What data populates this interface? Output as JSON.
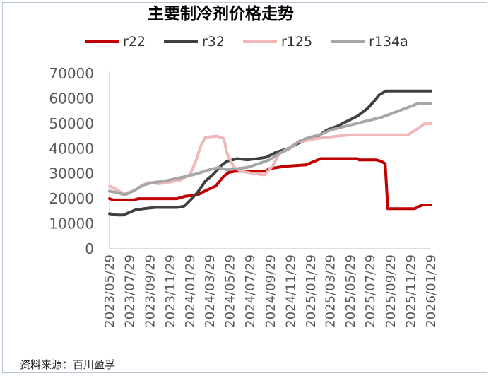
{
  "source_note": "资料来源：百川盈孚",
  "chart_data": {
    "type": "line",
    "title": "主要制冷剂价格走势",
    "xlabel": "",
    "ylabel": "",
    "ylim": [
      0,
      70000
    ],
    "yticks": [
      0,
      10000,
      20000,
      30000,
      40000,
      50000,
      60000,
      70000
    ],
    "xlim": [
      "2023-05-29",
      "2026-01-29"
    ],
    "xticks": [
      "2023/05/29",
      "2023/07/29",
      "2023/09/29",
      "2023/11/29",
      "2024/01/29",
      "2024/03/29",
      "2024/05/29",
      "2024/07/29",
      "2024/09/29",
      "2024/11/29",
      "2025/01/29",
      "2025/03/29",
      "2025/05/29",
      "2025/07/29",
      "2025/09/29",
      "2025/11/29",
      "2026/01/29"
    ],
    "grid": false,
    "legend_position": "top",
    "series": [
      {
        "name": "r22",
        "color": "#c00000",
        "points": [
          [
            "2023-05-29",
            20000
          ],
          [
            "2023-06-10",
            19500
          ],
          [
            "2023-08-10",
            19500
          ],
          [
            "2023-08-25",
            20000
          ],
          [
            "2023-12-20",
            20000
          ],
          [
            "2024-01-15",
            21000
          ],
          [
            "2024-02-20",
            21500
          ],
          [
            "2024-03-20",
            23500
          ],
          [
            "2024-04-15",
            25000
          ],
          [
            "2024-05-10",
            29000
          ],
          [
            "2024-05-25",
            30500
          ],
          [
            "2024-06-15",
            31000
          ],
          [
            "2024-09-15",
            31000
          ],
          [
            "2024-09-25",
            32000
          ],
          [
            "2024-11-15",
            33000
          ],
          [
            "2025-01-15",
            33500
          ],
          [
            "2025-02-01",
            34500
          ],
          [
            "2025-03-01",
            36000
          ],
          [
            "2025-06-20",
            36000
          ],
          [
            "2025-06-25",
            35500
          ],
          [
            "2025-08-15",
            35500
          ],
          [
            "2025-08-30",
            35000
          ],
          [
            "2025-09-12",
            34000
          ],
          [
            "2025-09-20",
            16000
          ],
          [
            "2025-12-10",
            16000
          ],
          [
            "2025-12-25",
            17000
          ],
          [
            "2026-01-05",
            17500
          ],
          [
            "2026-01-29",
            17500
          ]
        ]
      },
      {
        "name": "r32",
        "color": "#404040",
        "points": [
          [
            "2023-05-29",
            14000
          ],
          [
            "2023-06-20",
            13500
          ],
          [
            "2023-07-10",
            13500
          ],
          [
            "2023-08-15",
            15500
          ],
          [
            "2023-09-10",
            16000
          ],
          [
            "2023-10-15",
            16500
          ],
          [
            "2023-12-20",
            16500
          ],
          [
            "2024-01-10",
            17000
          ],
          [
            "2024-01-30",
            19500
          ],
          [
            "2024-02-20",
            22500
          ],
          [
            "2024-03-15",
            27000
          ],
          [
            "2024-04-10",
            30000
          ],
          [
            "2024-04-30",
            33000
          ],
          [
            "2024-05-20",
            35000
          ],
          [
            "2024-06-20",
            36000
          ],
          [
            "2024-07-20",
            35500
          ],
          [
            "2024-08-20",
            36000
          ],
          [
            "2024-09-15",
            36500
          ],
          [
            "2024-10-15",
            38500
          ],
          [
            "2024-11-20",
            40000
          ],
          [
            "2024-12-20",
            42000
          ],
          [
            "2025-01-25",
            44000
          ],
          [
            "2025-02-20",
            45000
          ],
          [
            "2025-03-20",
            47500
          ],
          [
            "2025-04-20",
            49000
          ],
          [
            "2025-05-20",
            51000
          ],
          [
            "2025-06-20",
            53000
          ],
          [
            "2025-07-20",
            56000
          ],
          [
            "2025-08-10",
            59000
          ],
          [
            "2025-08-25",
            61500
          ],
          [
            "2025-09-15",
            63000
          ],
          [
            "2026-01-29",
            63000
          ]
        ]
      },
      {
        "name": "r125",
        "color": "#f0b8b8",
        "points": [
          [
            "2023-05-29",
            25000
          ],
          [
            "2023-06-15",
            24000
          ],
          [
            "2023-07-10",
            22000
          ],
          [
            "2023-08-10",
            23000
          ],
          [
            "2023-09-01",
            25000
          ],
          [
            "2023-09-25",
            26500
          ],
          [
            "2023-10-25",
            26000
          ],
          [
            "2023-11-25",
            26500
          ],
          [
            "2024-01-01",
            27500
          ],
          [
            "2024-01-30",
            30000
          ],
          [
            "2024-02-15",
            35000
          ],
          [
            "2024-03-01",
            41000
          ],
          [
            "2024-03-15",
            44500
          ],
          [
            "2024-04-20",
            45000
          ],
          [
            "2024-05-10",
            44000
          ],
          [
            "2024-05-20",
            38000
          ],
          [
            "2024-06-10",
            32500
          ],
          [
            "2024-07-01",
            31000
          ],
          [
            "2024-08-10",
            30000
          ],
          [
            "2024-09-10",
            29500
          ],
          [
            "2024-10-05",
            33000
          ],
          [
            "2024-10-25",
            38000
          ],
          [
            "2024-11-20",
            40000
          ],
          [
            "2024-12-20",
            42500
          ],
          [
            "2025-02-15",
            44000
          ],
          [
            "2025-04-20",
            45000
          ],
          [
            "2025-06-01",
            45500
          ],
          [
            "2025-11-20",
            45500
          ],
          [
            "2025-12-20",
            48000
          ],
          [
            "2026-01-10",
            50000
          ],
          [
            "2026-01-29",
            50000
          ]
        ]
      },
      {
        "name": "r134a",
        "color": "#a6a6a6",
        "points": [
          [
            "2023-05-29",
            23000
          ],
          [
            "2023-06-20",
            22500
          ],
          [
            "2023-07-15",
            21500
          ],
          [
            "2023-08-15",
            23500
          ],
          [
            "2023-09-10",
            25500
          ],
          [
            "2023-10-10",
            26500
          ],
          [
            "2023-11-10",
            27000
          ],
          [
            "2023-12-15",
            28000
          ],
          [
            "2024-01-20",
            29000
          ],
          [
            "2024-02-20",
            30000
          ],
          [
            "2024-03-25",
            31500
          ],
          [
            "2024-04-25",
            32500
          ],
          [
            "2024-05-20",
            31500
          ],
          [
            "2024-06-20",
            32000
          ],
          [
            "2024-07-20",
            32500
          ],
          [
            "2024-08-25",
            34000
          ],
          [
            "2024-09-25",
            35500
          ],
          [
            "2024-10-25",
            38000
          ],
          [
            "2024-11-25",
            40000
          ],
          [
            "2024-12-25",
            43000
          ],
          [
            "2025-01-25",
            44500
          ],
          [
            "2025-02-25",
            45500
          ],
          [
            "2025-04-01",
            47500
          ],
          [
            "2025-05-01",
            48500
          ],
          [
            "2025-06-01",
            49500
          ],
          [
            "2025-07-01",
            50500
          ],
          [
            "2025-08-01",
            51500
          ],
          [
            "2025-09-01",
            52500
          ],
          [
            "2025-10-01",
            54000
          ],
          [
            "2025-11-01",
            55500
          ],
          [
            "2025-12-01",
            57000
          ],
          [
            "2025-12-20",
            58000
          ],
          [
            "2026-01-29",
            58000
          ]
        ]
      }
    ]
  }
}
